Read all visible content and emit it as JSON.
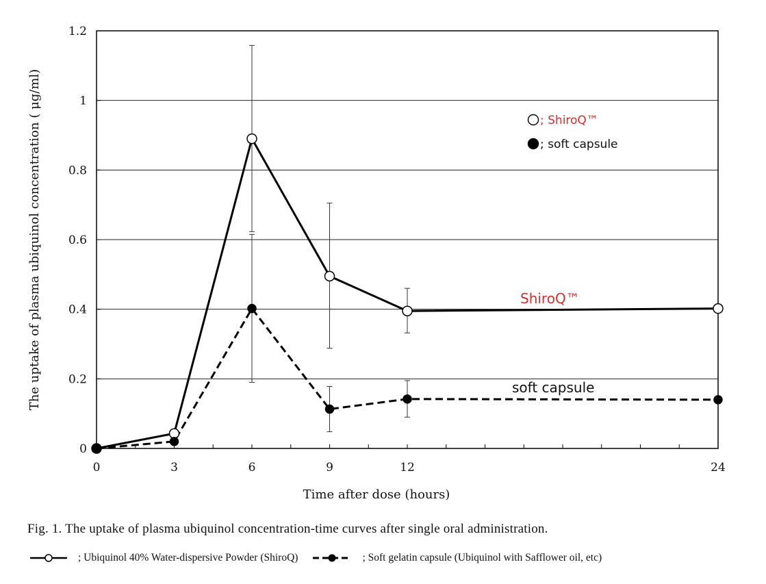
{
  "chart_data": {
    "type": "line",
    "ylabel": "The uptake of plasma ubiquinol concentration ( μg/ml)",
    "xlabel": "Time after dose (hours)",
    "ylim": [
      0,
      1.2
    ],
    "y_ticks": [
      0,
      0.2,
      0.4,
      0.6,
      0.8,
      1,
      1.2
    ],
    "y_tick_labels": [
      "0",
      "0.2",
      "0.4",
      "0.6",
      "0.8",
      "1",
      "1.2"
    ],
    "x_ticks": [
      0,
      3,
      6,
      9,
      12,
      24
    ],
    "x_tick_labels": [
      "0",
      "3",
      "6",
      "9",
      "12",
      "24"
    ],
    "grid": "horizontal",
    "series": [
      {
        "name": "ShiroQ™",
        "marker": "open-circle",
        "line": "solid",
        "color": "#000000",
        "x": [
          0,
          3,
          6,
          9,
          12,
          24
        ],
        "y": [
          0,
          0.043,
          0.89,
          0.495,
          0.395,
          0.402
        ],
        "error_upper": [
          null,
          null,
          1.158,
          0.705,
          0.46,
          null
        ],
        "error_lower": [
          null,
          null,
          0.623,
          0.288,
          0.332,
          null
        ]
      },
      {
        "name": "soft capsule",
        "marker": "filled-circle",
        "line": "dashed",
        "color": "#000000",
        "x": [
          0,
          3,
          6,
          9,
          12,
          24
        ],
        "y": [
          0,
          0.02,
          0.402,
          0.113,
          0.142,
          0.14
        ],
        "error_upper": [
          null,
          null,
          0.615,
          0.178,
          0.195,
          null
        ],
        "error_lower": [
          null,
          null,
          0.19,
          0.048,
          0.09,
          null
        ]
      }
    ],
    "inset_legend": [
      {
        "symbol": "open-circle",
        "text": "; ShiroQ™",
        "color": "#d32f2f"
      },
      {
        "symbol": "filled-circle",
        "text": "; soft capsule",
        "color": "#111111"
      }
    ],
    "annotations": [
      {
        "text": "ShiroQ™",
        "color": "#d32f2f",
        "near_series": 0
      },
      {
        "text": "soft capsule",
        "color": "#111111",
        "near_series": 1
      }
    ]
  },
  "caption": "Fig. 1.  The uptake of plasma ubiquinol concentration-time curves after single oral administration.",
  "bottom_legend": [
    {
      "symbol": "open-circle-solid",
      "text": "; Ubiquinol 40% Water-dispersive Powder (ShiroQ)"
    },
    {
      "symbol": "filled-circle-dashed",
      "text": "; Soft gelatin capsule (Ubiquinol with Safflower oil, etc)"
    }
  ]
}
